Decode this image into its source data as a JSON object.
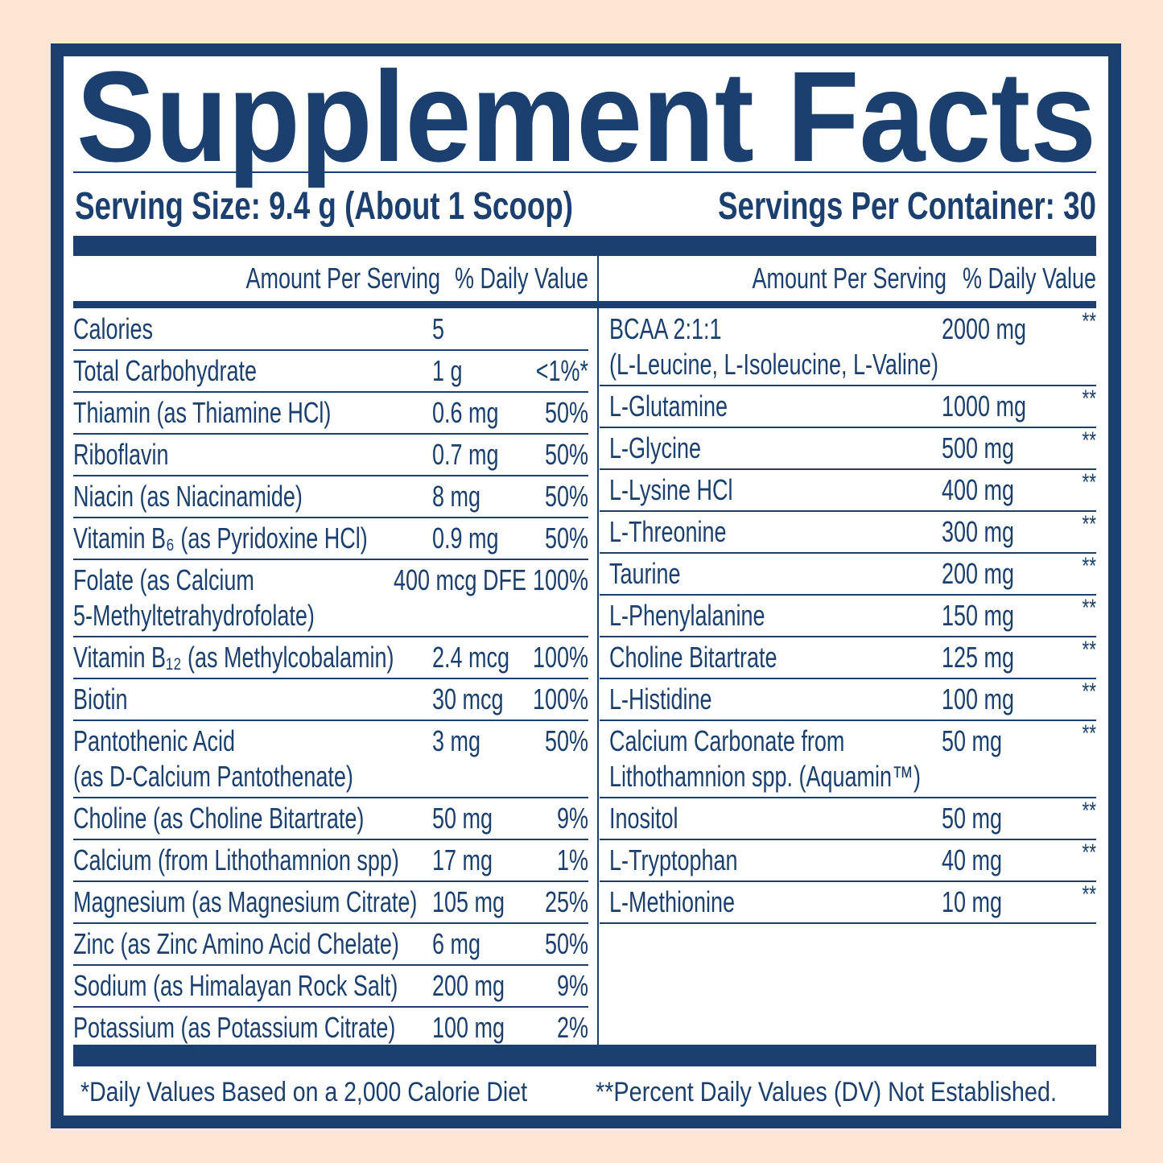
{
  "header": {
    "title": "Supplement Facts",
    "serving_size": "Serving Size: 9.4 g (About 1 Scoop)",
    "servings_per_container": "Servings Per Container: 30"
  },
  "left_table": {
    "columns": [
      "Amount Per Serving",
      "% Daily Value"
    ],
    "rows": [
      {
        "name": [
          "Calories"
        ],
        "amount": "5",
        "dv": null
      },
      {
        "name": [
          "Total Carbohydrate"
        ],
        "amount": "1 g",
        "dv": "<1%*"
      },
      {
        "name": [
          "Thiamin (as Thiamine HCl)"
        ],
        "amount": "0.6 mg",
        "dv": "50%"
      },
      {
        "name": [
          "Riboflavin"
        ],
        "amount": "0.7 mg",
        "dv": "50%"
      },
      {
        "name": [
          "Niacin (as Niacinamide)"
        ],
        "amount": "8 mg",
        "dv": "50%"
      },
      {
        "name": [
          "Vitamin B₆ (as Pyridoxine HCl)"
        ],
        "amount": "0.9 mg",
        "dv": "50%"
      },
      {
        "name": [
          "Folate (as Calcium",
          "5-Methyltetrahydrofolate)"
        ],
        "amount": "400 mcg DFE",
        "dv": "100%"
      },
      {
        "name": [
          "Vitamin B₁₂ (as Methylcobalamin)"
        ],
        "amount": "2.4 mcg",
        "dv": "100%"
      },
      {
        "name": [
          "Biotin"
        ],
        "amount": "30 mcg",
        "dv": "100%"
      },
      {
        "name": [
          "Pantothenic Acid",
          "(as D-Calcium Pantothenate)"
        ],
        "amount": "3 mg",
        "dv": "50%"
      },
      {
        "name": [
          "Choline (as Choline Bitartrate)"
        ],
        "amount": "50 mg",
        "dv": "9%"
      },
      {
        "name": [
          "Calcium (from Lithothamnion spp)"
        ],
        "amount": "17 mg",
        "dv": "1%"
      },
      {
        "name": [
          "Magnesium (as Magnesium Citrate)"
        ],
        "amount": "105 mg",
        "dv": "25%"
      },
      {
        "name": [
          "Zinc (as Zinc Amino Acid Chelate)"
        ],
        "amount": "6 mg",
        "dv": "50%"
      },
      {
        "name": [
          "Sodium (as Himalayan Rock Salt)"
        ],
        "amount": "200 mg",
        "dv": "9%"
      },
      {
        "name": [
          "Potassium (as Potassium Citrate)"
        ],
        "amount": "100 mg",
        "dv": "2%"
      }
    ]
  },
  "right_table": {
    "columns": [
      "Amount Per Serving",
      "% Daily Value"
    ],
    "rows": [
      {
        "name": [
          "BCAA 2:1:1",
          "(L-Leucine, L-Isoleucine, L-Valine)"
        ],
        "amount": "2000 mg",
        "dv": "**"
      },
      {
        "name": [
          "L-Glutamine"
        ],
        "amount": "1000 mg",
        "dv": "**"
      },
      {
        "name": [
          "L-Glycine"
        ],
        "amount": "500 mg",
        "dv": "**"
      },
      {
        "name": [
          "L-Lysine HCl"
        ],
        "amount": "400 mg",
        "dv": "**"
      },
      {
        "name": [
          "L-Threonine"
        ],
        "amount": "300 mg",
        "dv": "**"
      },
      {
        "name": [
          "Taurine"
        ],
        "amount": "200 mg",
        "dv": "**"
      },
      {
        "name": [
          "L-Phenylalanine"
        ],
        "amount": "150 mg",
        "dv": "**"
      },
      {
        "name": [
          "Choline Bitartrate"
        ],
        "amount": "125 mg",
        "dv": "**"
      },
      {
        "name": [
          "L-Histidine"
        ],
        "amount": "100 mg",
        "dv": "**"
      },
      {
        "name": [
          "Calcium Carbonate from",
          "Lithothamnion spp. (Aquamin™)"
        ],
        "amount": "50 mg",
        "dv": "**"
      },
      {
        "name": [
          "Inositol"
        ],
        "amount": "50 mg",
        "dv": "**"
      },
      {
        "name": [
          "L-Tryptophan"
        ],
        "amount": "40 mg",
        "dv": "**"
      },
      {
        "name": [
          "L-Methionine"
        ],
        "amount": "10 mg",
        "dv": "**"
      }
    ]
  },
  "footnotes": [
    "*Daily Values Based on a 2,000 Calorie Diet",
    "**Percent Daily Values (DV) Not Established."
  ]
}
